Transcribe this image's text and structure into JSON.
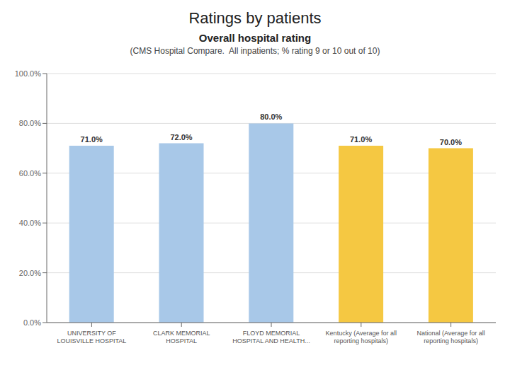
{
  "chart_data": {
    "type": "bar",
    "title": "Ratings by patients",
    "subtitle": "Overall hospital rating",
    "annotations": [
      "(CMS Hospital Compare.  All inpatients; % rating 9 or 10 out of 10)"
    ],
    "categories": [
      "UNIVERSITY OF\nLOUISVILLE HOSPITAL",
      "CLARK MEMORIAL\nHOSPITAL",
      "FLOYD MEMORIAL\nHOSPITAL AND HEALTH...",
      "Kentucky (Average for all\nreporting hospitals)",
      "National (Average for all\nreporting hospitals)"
    ],
    "values": [
      71.0,
      72.0,
      80.0,
      71.0,
      70.0
    ],
    "value_labels": [
      "71.0%",
      "72.0%",
      "80.0%",
      "71.0%",
      "70.0%"
    ],
    "data_labels": true,
    "colors": [
      "#a8c8e8",
      "#a8c8e8",
      "#a8c8e8",
      "#f5c842",
      "#f5c842"
    ],
    "ylim": [
      0,
      100
    ],
    "yticks": [
      {
        "value": 0,
        "label": "0.0%"
      },
      {
        "value": 20,
        "label": "20.0%"
      },
      {
        "value": 40,
        "label": "40.0%"
      },
      {
        "value": 60,
        "label": "60.0%"
      },
      {
        "value": 80,
        "label": "80.0%"
      },
      {
        "value": 100,
        "label": "100.0%"
      }
    ],
    "grid": true
  }
}
